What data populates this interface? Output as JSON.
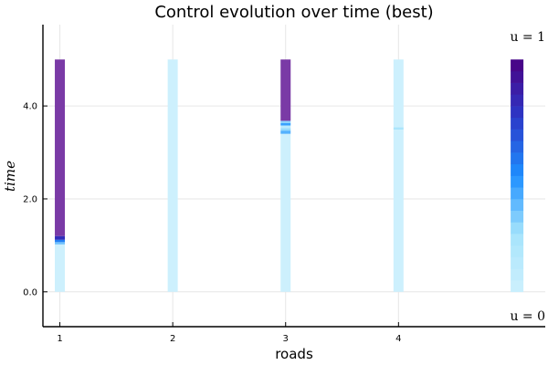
{
  "chart_data": {
    "type": "heatmap",
    "title": "Control evolution over time (best)",
    "xlabel": "roads",
    "ylabel": "time",
    "x_ticks": [
      1,
      2,
      3,
      4
    ],
    "x_tick_labels": [
      "1",
      "2",
      "3",
      "4"
    ],
    "y_ticks": [
      0.0,
      2.0,
      4.0
    ],
    "y_tick_labels": [
      "0.0",
      "2.0",
      "4.0"
    ],
    "xlim": [
      0.85,
      5.3
    ],
    "ylim": [
      -0.75,
      5.75
    ],
    "grid": true,
    "colorbar": {
      "min_label": "u = 0",
      "max_label": "u = 1",
      "x": 5.05,
      "y_range": [
        0.0,
        5.0
      ],
      "steps": 20
    },
    "color_stops": [
      "#cdf0fd",
      "#a6e4fc",
      "#1e90ff",
      "#2b39c9",
      "#4b0082"
    ],
    "bar_color": "#7a3aa6",
    "roads": [
      {
        "road": 1,
        "segments": [
          {
            "t0": 0.0,
            "t1": 1.02,
            "u": 0.0
          },
          {
            "t0": 1.02,
            "t1": 1.07,
            "u": 0.35
          },
          {
            "t0": 1.07,
            "t1": 1.12,
            "u": 0.55
          },
          {
            "t0": 1.12,
            "t1": 1.2,
            "u": 0.8
          },
          {
            "t0": 1.2,
            "t1": 5.0,
            "u": 1.0
          }
        ]
      },
      {
        "road": 2,
        "segments": [
          {
            "t0": 0.0,
            "t1": 5.0,
            "u": 0.0
          }
        ]
      },
      {
        "road": 3,
        "segments": [
          {
            "t0": 0.0,
            "t1": 3.4,
            "u": 0.0
          },
          {
            "t0": 3.4,
            "t1": 3.47,
            "u": 0.4
          },
          {
            "t0": 3.47,
            "t1": 3.52,
            "u": 0.28
          },
          {
            "t0": 3.52,
            "t1": 3.58,
            "u": 0.12
          },
          {
            "t0": 3.58,
            "t1": 3.63,
            "u": 0.45
          },
          {
            "t0": 3.63,
            "t1": 3.68,
            "u": 0.3
          },
          {
            "t0": 3.68,
            "t1": 5.0,
            "u": 1.0
          }
        ]
      },
      {
        "road": 4,
        "segments": [
          {
            "t0": 0.0,
            "t1": 3.49,
            "u": 0.0
          },
          {
            "t0": 3.49,
            "t1": 3.54,
            "u": 0.22
          },
          {
            "t0": 3.54,
            "t1": 5.0,
            "u": 0.0
          }
        ]
      }
    ]
  }
}
